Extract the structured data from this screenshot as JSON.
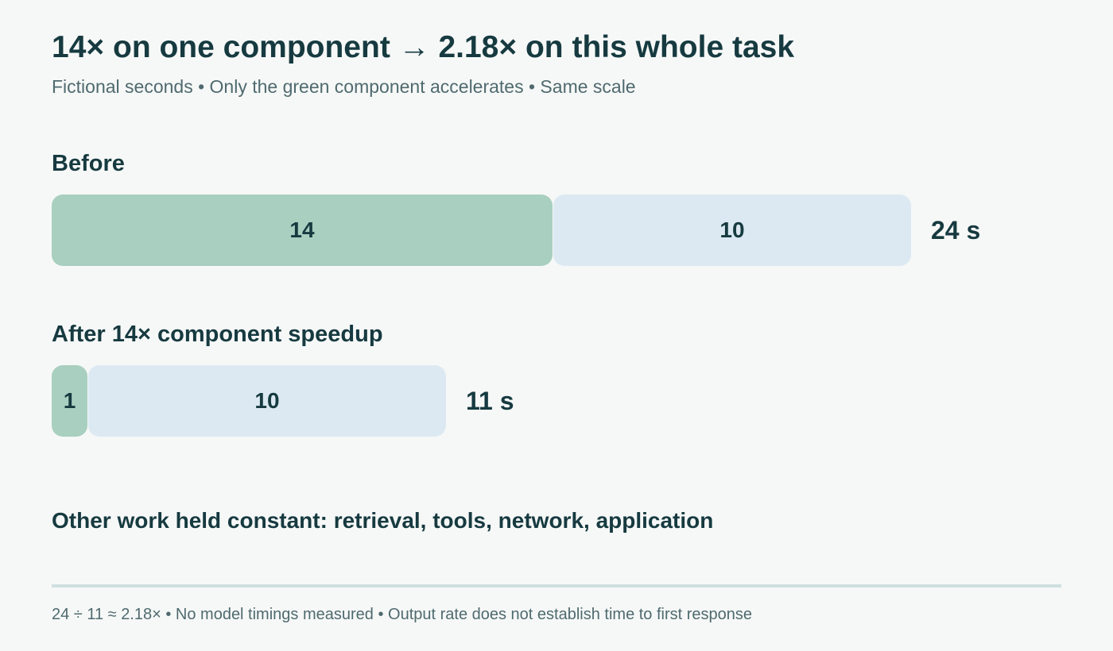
{
  "chart_data": {
    "type": "bar",
    "orientation": "horizontal",
    "stacked": true,
    "title": "14× on one component → 2.18× on this whole task",
    "subtitle": "Fictional seconds • Only the green component accelerates • Same scale",
    "categories": [
      "Before",
      "After 14× component speedup"
    ],
    "series": [
      {
        "values": [
          14,
          1
        ],
        "labels": [
          "14",
          "1"
        ],
        "color": "#a8cfbf"
      },
      {
        "values": [
          10,
          10
        ],
        "labels": [
          "10",
          "10"
        ],
        "color": "#dce9f2"
      }
    ],
    "totals": [
      "24 s",
      "11 s"
    ],
    "total_values": [
      24,
      11
    ],
    "note": "Other work held constant: retrieval, tools, network, application",
    "footer": "24 ÷ 11 ≈ 2.18× • No model timings measured • Output rate does not establish time to first response",
    "grid": false,
    "legend": "none"
  }
}
